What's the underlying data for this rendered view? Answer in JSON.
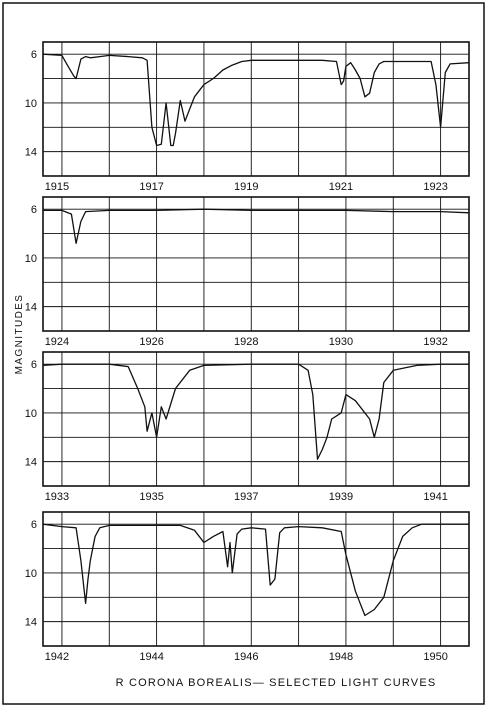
{
  "colors": {
    "ink": "#111111",
    "paper": "#ffffff"
  },
  "chart_data": {
    "type": "line",
    "title": "R  CORONA BOREALIS— SELECTED LIGHT CURVES",
    "ylabel": "MAGNITUDES",
    "y_inverted": true,
    "grid": true,
    "panels": [
      {
        "xlim": [
          1914.6,
          1923.6
        ],
        "ylim": [
          16,
          5
        ],
        "x_ticks": [
          1915,
          1917,
          1919,
          1921,
          1923
        ],
        "y_ticks": [
          6,
          10,
          14
        ],
        "x": [
          1914.6,
          1915.0,
          1915.1,
          1915.25,
          1915.3,
          1915.4,
          1915.5,
          1915.6,
          1915.8,
          1916.0,
          1916.4,
          1916.7,
          1916.8,
          1916.9,
          1917.0,
          1917.1,
          1917.2,
          1917.3,
          1917.35,
          1917.4,
          1917.5,
          1917.6,
          1917.7,
          1917.8,
          1917.9,
          1918.0,
          1918.2,
          1918.4,
          1918.6,
          1918.8,
          1919.0,
          1919.5,
          1920.0,
          1920.5,
          1920.8,
          1920.9,
          1920.95,
          1921.0,
          1921.1,
          1921.2,
          1921.3,
          1921.4,
          1921.5,
          1921.6,
          1921.7,
          1921.8,
          1922.0,
          1922.3,
          1922.6,
          1922.8,
          1922.9,
          1923.0,
          1923.1,
          1923.2,
          1923.6
        ],
        "y": [
          6.0,
          6.1,
          6.8,
          7.8,
          8.0,
          6.4,
          6.2,
          6.3,
          6.2,
          6.1,
          6.2,
          6.3,
          6.5,
          12.0,
          13.5,
          13.4,
          10.0,
          13.5,
          13.5,
          12.5,
          9.8,
          11.5,
          10.5,
          9.5,
          9.0,
          8.5,
          8.0,
          7.3,
          6.9,
          6.6,
          6.5,
          6.5,
          6.5,
          6.5,
          6.6,
          8.5,
          8.2,
          7.0,
          6.7,
          7.3,
          8.0,
          9.5,
          9.2,
          7.5,
          6.8,
          6.6,
          6.6,
          6.6,
          6.6,
          6.6,
          8.5,
          12.0,
          7.5,
          6.8,
          6.7
        ]
      },
      {
        "xlim": [
          1923.6,
          1932.6
        ],
        "ylim": [
          16,
          5
        ],
        "x_ticks": [
          1924,
          1926,
          1928,
          1930,
          1932
        ],
        "y_ticks": [
          6,
          10,
          14
        ],
        "x": [
          1923.6,
          1924.0,
          1924.2,
          1924.3,
          1924.4,
          1924.5,
          1925.0,
          1926.0,
          1927.0,
          1928.0,
          1929.0,
          1930.0,
          1931.0,
          1932.0,
          1932.6
        ],
        "y": [
          6.1,
          6.1,
          6.4,
          8.8,
          7.0,
          6.2,
          6.1,
          6.1,
          6.0,
          6.1,
          6.1,
          6.1,
          6.2,
          6.2,
          6.3
        ]
      },
      {
        "xlim": [
          1932.6,
          1941.6
        ],
        "ylim": [
          16,
          5
        ],
        "x_ticks": [
          1933,
          1935,
          1937,
          1939,
          1941
        ],
        "y_ticks": [
          6,
          10,
          14
        ],
        "x": [
          1932.6,
          1933.0,
          1934.0,
          1934.4,
          1934.6,
          1934.75,
          1934.8,
          1934.9,
          1935.0,
          1935.1,
          1935.2,
          1935.4,
          1935.7,
          1936.0,
          1937.0,
          1938.0,
          1938.2,
          1938.3,
          1938.4,
          1938.5,
          1938.6,
          1938.7,
          1938.9,
          1939.0,
          1939.2,
          1939.5,
          1939.6,
          1939.7,
          1939.8,
          1940.0,
          1940.5,
          1941.0,
          1941.6
        ],
        "y": [
          6.1,
          6.0,
          6.0,
          6.2,
          8.0,
          9.5,
          11.5,
          10.0,
          12.0,
          9.5,
          10.5,
          8.0,
          6.5,
          6.1,
          6.0,
          6.0,
          6.5,
          8.5,
          13.8,
          13.0,
          12.0,
          10.5,
          10.0,
          8.5,
          9.0,
          10.5,
          12.0,
          10.5,
          7.5,
          6.5,
          6.1,
          6.0,
          6.0
        ]
      },
      {
        "xlim": [
          1941.6,
          1950.6
        ],
        "ylim": [
          16,
          5
        ],
        "x_ticks": [
          1942,
          1944,
          1946,
          1948,
          1950
        ],
        "y_ticks": [
          6,
          10,
          14
        ],
        "x": [
          1941.6,
          1942.0,
          1942.3,
          1942.4,
          1942.5,
          1942.55,
          1942.6,
          1942.7,
          1942.8,
          1943.0,
          1943.5,
          1944.0,
          1944.5,
          1944.8,
          1945.0,
          1945.2,
          1945.4,
          1945.5,
          1945.55,
          1945.6,
          1945.7,
          1945.8,
          1946.0,
          1946.3,
          1946.4,
          1946.5,
          1946.6,
          1946.7,
          1947.0,
          1947.5,
          1947.9,
          1948.0,
          1948.2,
          1948.4,
          1948.6,
          1948.8,
          1949.0,
          1949.2,
          1949.4,
          1949.6,
          1950.0,
          1950.6
        ],
        "y": [
          6.0,
          6.2,
          6.3,
          9.0,
          12.5,
          10.5,
          9.0,
          7.0,
          6.3,
          6.1,
          6.1,
          6.1,
          6.1,
          6.5,
          7.5,
          7.0,
          6.6,
          9.5,
          7.5,
          10.0,
          6.8,
          6.4,
          6.3,
          6.4,
          11.0,
          10.5,
          6.7,
          6.3,
          6.2,
          6.3,
          6.6,
          8.5,
          11.5,
          13.5,
          13.0,
          12.0,
          9.0,
          7.0,
          6.3,
          6.0,
          6.0,
          6.0
        ]
      }
    ]
  }
}
